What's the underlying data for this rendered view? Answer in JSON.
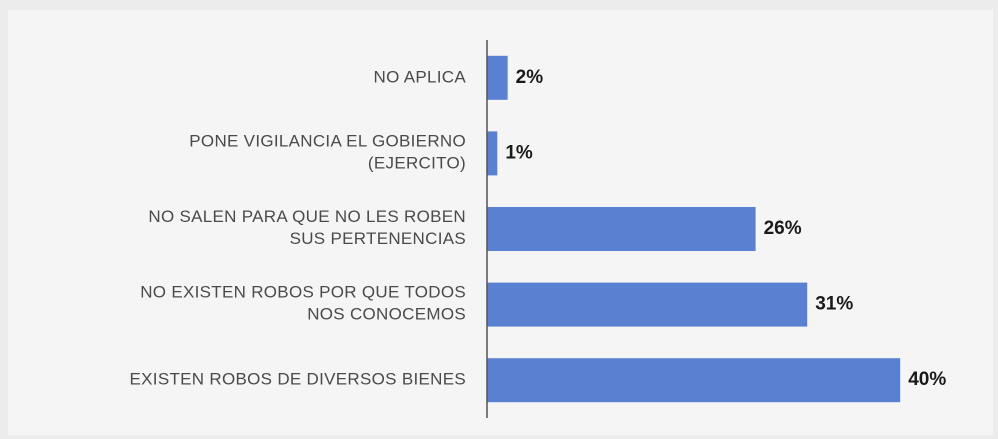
{
  "chart_data": {
    "type": "hbar",
    "categories": [
      "NO APLICA",
      "PONE VIGILANCIA EL GOBIERNO\n(EJERCITO)",
      "NO SALEN PARA QUE NO LES ROBEN\nSUS PERTENENCIAS",
      "NO EXISTEN ROBOS POR QUE TODOS\nNOS CONOCEMOS",
      "EXISTEN ROBOS DE DIVERSOS BIENES"
    ],
    "values": [
      2,
      1,
      26,
      31,
      40
    ],
    "value_labels": [
      "2%",
      "1%",
      "26%",
      "31%",
      "40%"
    ],
    "color": "#5a80d2"
  }
}
